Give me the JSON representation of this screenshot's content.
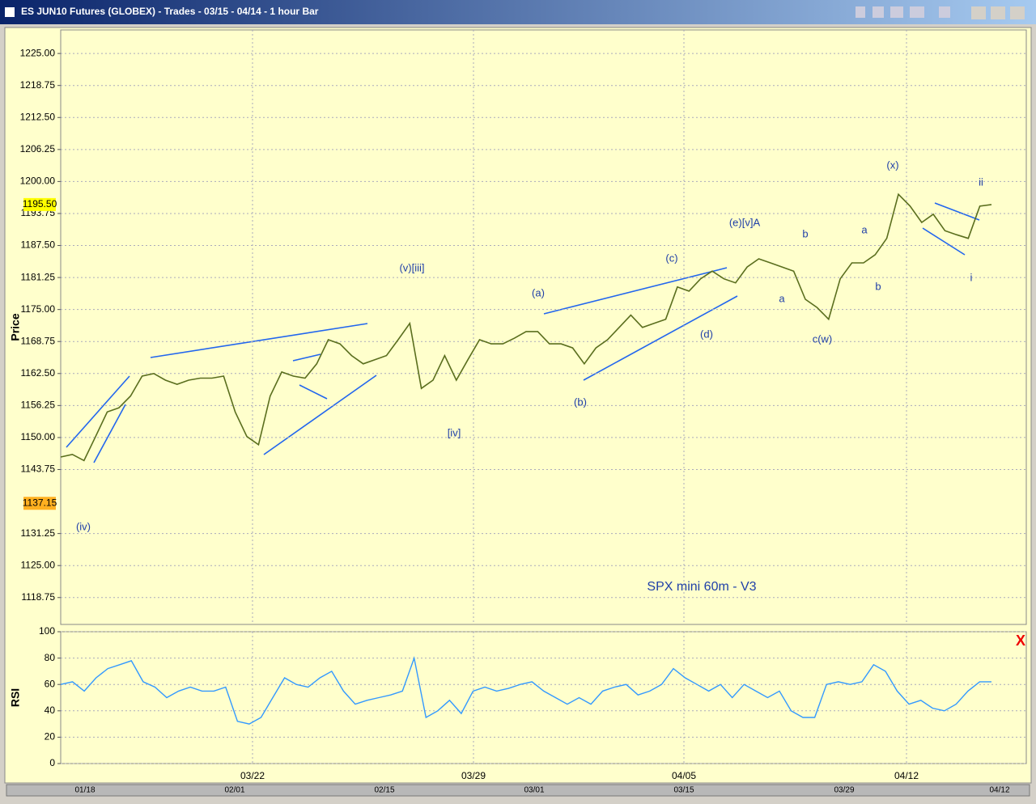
{
  "window": {
    "title": "ES JUN10 Futures (GLOBEX) - Trades - 03/15 - 04/14  - 1 hour Bar"
  },
  "chart_data": [
    {
      "type": "line",
      "y_label": "Price",
      "color": "#5a6e1e",
      "grid": true,
      "values": [
        1146.2,
        1146.7,
        1145.5,
        1150.2,
        1155,
        1155.8,
        1158.1,
        1162,
        1162.5,
        1161.2,
        1160.4,
        1161.2,
        1161.6,
        1161.6,
        1162,
        1155,
        1150.2,
        1148.6,
        1158.1,
        1162.8,
        1162,
        1161.6,
        1164.4,
        1169.1,
        1168.3,
        1166,
        1164.4,
        1165.2,
        1166,
        1169.1,
        1172.3,
        1159.6,
        1161.2,
        1166,
        1161.2,
        1165.2,
        1169.1,
        1168.3,
        1168.3,
        1169.4,
        1170.7,
        1170.7,
        1168.3,
        1168.3,
        1167.5,
        1164.4,
        1167.5,
        1169.1,
        1171.5,
        1173.9,
        1171.5,
        1172.3,
        1173.1,
        1179.4,
        1178.6,
        1181,
        1182.5,
        1181,
        1180.2,
        1183.3,
        1184.9,
        1184.1,
        1183.3,
        1182.5,
        1177,
        1175.4,
        1173.1,
        1181,
        1184.1,
        1184.1,
        1185.7,
        1188.9,
        1197.5,
        1195.2,
        1192,
        1193.6,
        1190.4,
        1189.6,
        1188.9,
        1195.2,
        1195.5
      ],
      "ylim": [
        1113.5,
        1229.6
      ],
      "yticks": [
        {
          "value": 1225,
          "label": "1225.00"
        },
        {
          "value": 1218.75,
          "label": "1218.75"
        },
        {
          "value": 1212.5,
          "label": "1212.50"
        },
        {
          "value": 1206.25,
          "label": "1206.25"
        },
        {
          "value": 1200,
          "label": "1200.00"
        },
        {
          "value": 1193.75,
          "label": "1193.75"
        },
        {
          "value": 1187.5,
          "label": "1187.50"
        },
        {
          "value": 1181.25,
          "label": "1181.25"
        },
        {
          "value": 1175,
          "label": "1175.00"
        },
        {
          "value": 1168.75,
          "label": "1168.75"
        },
        {
          "value": 1162.5,
          "label": "1162.50"
        },
        {
          "value": 1156.25,
          "label": "1156.25"
        },
        {
          "value": 1150,
          "label": "1150.00"
        },
        {
          "value": 1143.75,
          "label": "1143.75"
        },
        {
          "value": 1131.25,
          "label": "1131.25"
        },
        {
          "value": 1125,
          "label": "1125.00"
        },
        {
          "value": 1118.75,
          "label": "1118.75"
        }
      ],
      "price_markers": [
        {
          "value": 1195.5,
          "label": "1195.50",
          "color": "#ffff00"
        },
        {
          "value": 1137.15,
          "label": "1137.15",
          "color": "#ffb020"
        }
      ],
      "x_labels": [
        "03/22",
        "03/29",
        "04/05",
        "04/12"
      ],
      "annotations": [
        "(iv)",
        "(v)[iii]",
        "[iv]",
        "(a)",
        "(b)",
        "(c)",
        "(d)",
        "(e)[v]A",
        "b",
        "a",
        "c(w)",
        "a",
        "b",
        "(x)",
        "ii",
        "i"
      ],
      "note": "SPX mini 60m - V3"
    },
    {
      "type": "line",
      "y_label": "RSI",
      "color": "#3399ff",
      "grid": true,
      "values": [
        60,
        62,
        55,
        65,
        72,
        75,
        78,
        62,
        58,
        50,
        55,
        58,
        55,
        55,
        58,
        32,
        30,
        35,
        50,
        65,
        60,
        58,
        65,
        70,
        55,
        45,
        48,
        50,
        52,
        55,
        80,
        35,
        40,
        48,
        38,
        55,
        58,
        55,
        57,
        60,
        62,
        55,
        50,
        45,
        50,
        45,
        55,
        58,
        60,
        52,
        55,
        60,
        72,
        65,
        60,
        55,
        60,
        50,
        60,
        55,
        50,
        55,
        40,
        35,
        35,
        60,
        62,
        60,
        62,
        75,
        70,
        55,
        45,
        48,
        42,
        40,
        45,
        55,
        62,
        62
      ],
      "ylim": [
        0,
        100
      ],
      "yticks": [
        0,
        20,
        40,
        60,
        80,
        100
      ]
    }
  ],
  "scrollbar": {
    "labels": [
      "01/18",
      "02/01",
      "02/15",
      "03/01",
      "03/15",
      "03/29",
      "04/12"
    ]
  }
}
